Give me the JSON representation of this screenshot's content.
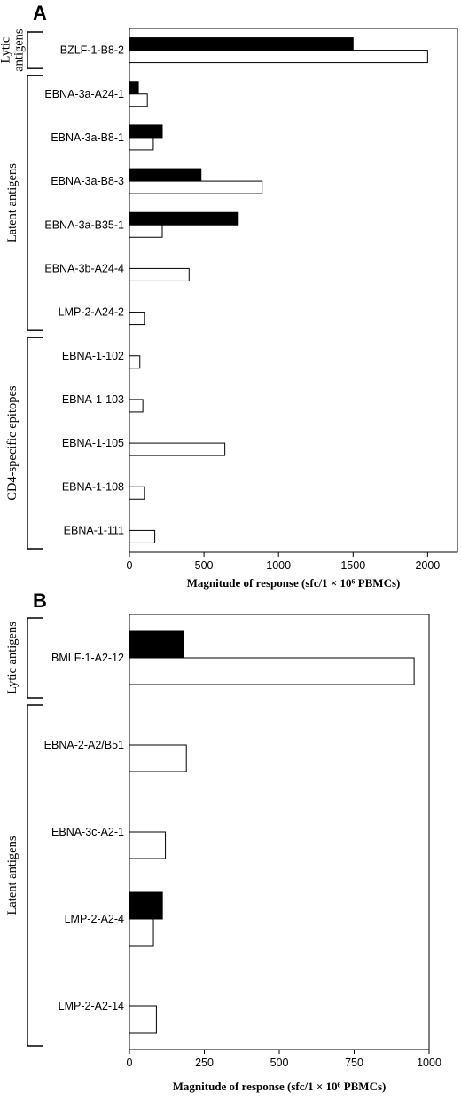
{
  "chart_data": [
    {
      "panel": "A",
      "type": "bar",
      "orientation": "horizontal",
      "categories": [
        "BZLF-1-B8-2",
        "EBNA-3a-A24-1",
        "EBNA-3a-B8-1",
        "EBNA-3a-B8-3",
        "EBNA-3a-B35-1",
        "EBNA-3b-A24-4",
        "LMP-2-A24-2",
        "EBNA-1-102",
        "EBNA-1-103",
        "EBNA-1-105",
        "EBNA-1-108",
        "EBNA-1-111"
      ],
      "series": [
        {
          "color": "#000000",
          "values": [
            1500,
            60,
            220,
            480,
            730,
            0,
            0,
            0,
            0,
            0,
            0,
            0
          ]
        },
        {
          "color": "#ffffff",
          "values": [
            2000,
            120,
            160,
            890,
            220,
            400,
            100,
            70,
            90,
            640,
            100,
            170
          ]
        }
      ],
      "groups": [
        {
          "lines": [
            "Lytic",
            "antigens"
          ],
          "categories": [
            "BZLF-1-B8-2"
          ]
        },
        {
          "lines": [
            "Latent antigens"
          ],
          "categories": [
            "EBNA-3a-A24-1",
            "EBNA-3a-B8-1",
            "EBNA-3a-B8-3",
            "EBNA-3a-B35-1",
            "EBNA-3b-A24-4",
            "LMP-2-A24-2"
          ]
        },
        {
          "lines": [
            "CD4-specific epitopes"
          ],
          "categories": [
            "EBNA-1-102",
            "EBNA-1-103",
            "EBNA-1-105",
            "EBNA-1-108",
            "EBNA-1-111"
          ]
        }
      ],
      "xlim": [
        0,
        2200
      ],
      "xticks": [
        0,
        500,
        1000,
        1500,
        2000
      ],
      "xlabel": "Magnitude of response (sfc/1 × 10⁶ PBMCs)",
      "grid": false
    },
    {
      "panel": "B",
      "type": "bar",
      "orientation": "horizontal",
      "categories": [
        "BMLF-1-A2-12",
        "EBNA-2-A2/B51",
        "EBNA-3c-A2-1",
        "LMP-2-A2-4",
        "LMP-2-A2-14"
      ],
      "series": [
        {
          "color": "#000000",
          "values": [
            180,
            0,
            0,
            110,
            0
          ]
        },
        {
          "color": "#ffffff",
          "values": [
            950,
            190,
            120,
            80,
            90
          ]
        }
      ],
      "groups": [
        {
          "lines": [
            "Lytic antigens"
          ],
          "categories": [
            "BMLF-1-A2-12"
          ]
        },
        {
          "lines": [
            "Latent antigens"
          ],
          "categories": [
            "EBNA-2-A2/B51",
            "EBNA-3c-A2-1",
            "LMP-2-A2-4",
            "LMP-2-A2-14"
          ]
        }
      ],
      "xlim": [
        0,
        1000
      ],
      "xticks": [
        0,
        250,
        500,
        750,
        1000
      ],
      "xlabel": "Magnitude of response (sfc/1 × 10⁶ PBMCs)",
      "grid": false
    }
  ]
}
